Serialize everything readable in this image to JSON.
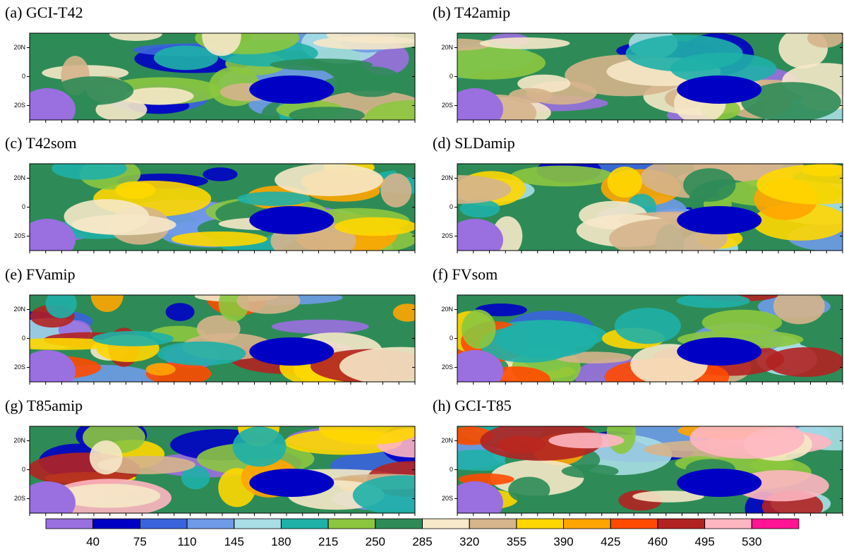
{
  "panels": [
    {
      "title": "(a) GCI-T42"
    },
    {
      "title": "(b) T42amip"
    },
    {
      "title": "(c) T42som"
    },
    {
      "title": "(d) SLDamip"
    },
    {
      "title": "(e) FVamip"
    },
    {
      "title": "(f) FVsom"
    },
    {
      "title": "(g) T85amip"
    },
    {
      "title": "(h) GCI-T85"
    }
  ],
  "ylim": [
    -30,
    30
  ],
  "yticks": [
    {
      "value": 20,
      "label": "20N"
    },
    0,
    {
      "value": -20,
      "label": "20S"
    }
  ],
  "colorbar": {
    "levels": [
      40,
      75,
      110,
      145,
      180,
      215,
      250,
      285,
      320,
      355,
      390,
      425,
      460,
      495,
      530
    ],
    "colors": [
      "#9a6fe0",
      "#0000c4",
      "#3a63de",
      "#6f9ae8",
      "#a9dee6",
      "#1fb0a8",
      "#8cc63f",
      "#2e8b57",
      "#f6e8c8",
      "#d6b48c",
      "#ffd700",
      "#ffa500",
      "#ff4a00",
      "#b22222",
      "#ffb6c1",
      "#ff1493"
    ]
  }
}
